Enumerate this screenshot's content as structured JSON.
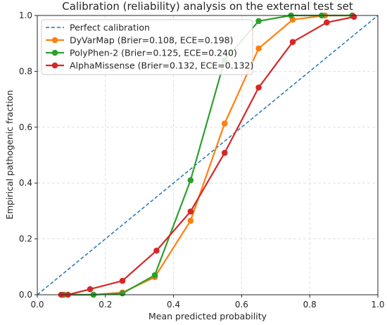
{
  "chart_data": {
    "type": "line",
    "title": "Calibration (reliability) analysis on the external test set",
    "xlabel": "Mean predicted probability",
    "ylabel": "Empirical pathogenic fraction",
    "xlim": [
      0,
      1
    ],
    "ylim": [
      0,
      1
    ],
    "x_ticks": [
      "0.0",
      "0.2",
      "0.4",
      "0.6",
      "0.8",
      "1.0"
    ],
    "y_ticks": [
      "0.0",
      "0.2",
      "0.4",
      "0.6",
      "0.8",
      "1.0"
    ],
    "grid": true,
    "legend_position": "top-left",
    "reference_line": {
      "name": "Perfect calibration",
      "x": [
        0,
        1
      ],
      "y": [
        0,
        1
      ],
      "color": "#1f77b4",
      "style": "dashed"
    },
    "series": [
      {
        "name": "DyVarMap (Brier=0.108, ECE=0.198)",
        "color": "#ff7f0e",
        "x": [
          0.08,
          0.165,
          0.25,
          0.345,
          0.45,
          0.55,
          0.65,
          0.75,
          0.845,
          0.925
        ],
        "y": [
          0.0,
          0.0,
          0.008,
          0.063,
          0.265,
          0.613,
          0.882,
          0.985,
          1.0,
          1.0
        ]
      },
      {
        "name": "PolyPhen-2 (Brier=0.125, ECE=0.240)",
        "color": "#2ca02c",
        "x": [
          0.075,
          0.165,
          0.25,
          0.345,
          0.45,
          0.55,
          0.65,
          0.745,
          0.835,
          0.925
        ],
        "y": [
          0.0,
          0.0,
          0.005,
          0.07,
          0.41,
          0.84,
          0.98,
          1.0,
          1.0,
          1.0
        ]
      },
      {
        "name": "AlphaMissense (Brier=0.132, ECE=0.132)",
        "color": "#d62728",
        "x": [
          0.07,
          0.09,
          0.155,
          0.25,
          0.35,
          0.45,
          0.55,
          0.65,
          0.75,
          0.85,
          0.93
        ],
        "y": [
          0.0,
          0.0,
          0.02,
          0.05,
          0.158,
          0.298,
          0.508,
          0.742,
          0.905,
          0.975,
          0.995
        ]
      }
    ]
  }
}
